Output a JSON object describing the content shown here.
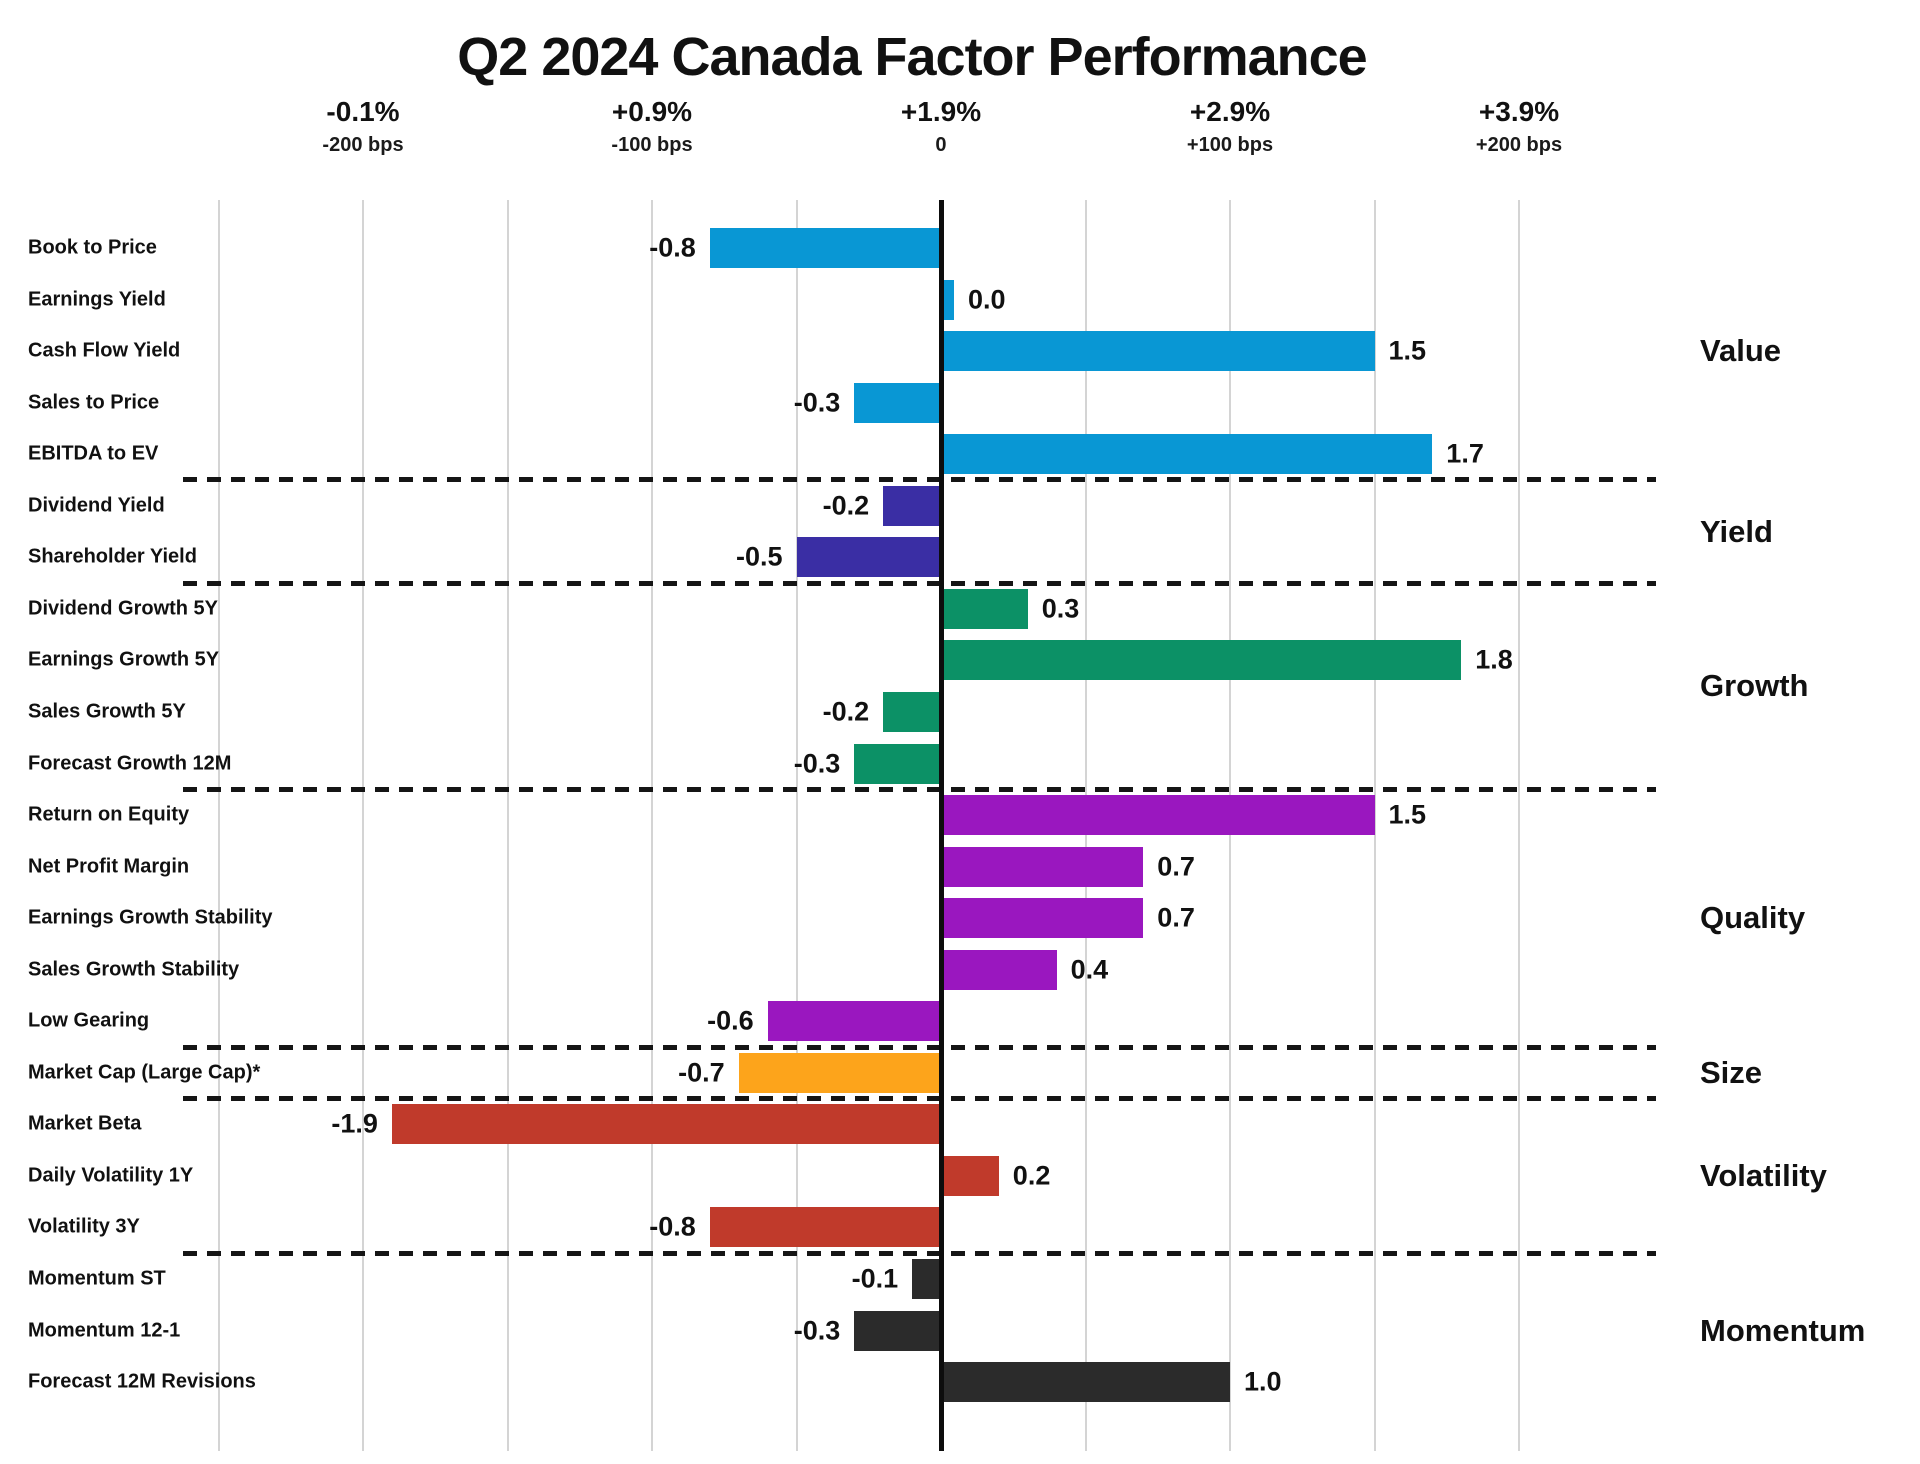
{
  "title": "Q2 2024 Canada Factor Performance",
  "colors": {
    "value_blue": "#0997D4",
    "yield_indigo": "#3A2EA4",
    "growth_green": "#0C9166",
    "quality_purple": "#9A17BF",
    "size_orange": "#FDA41B",
    "volatility_red": "#C03A2B",
    "momentum_dark": "#2B2B2B",
    "gridline": "#D4D4D4",
    "zero_line": "#0D0D0D",
    "text": "#111111"
  },
  "chart_data": {
    "type": "bar",
    "orientation": "horizontal",
    "title": "Q2 2024 Canada Factor Performance",
    "xlabel": "",
    "ylabel": "",
    "unit": "percentage points (100 bps = 1.0)",
    "xlim_bps": [
      -250,
      200
    ],
    "grid": "minor gridlines every 50 bps, thick black line at 0 bps",
    "legend_position": "group labels at right",
    "axis_ticks": [
      {
        "pct": "-0.1%",
        "bps_label": "-200 bps",
        "bps": -200
      },
      {
        "pct": "+0.9%",
        "bps_label": "-100 bps",
        "bps": -100
      },
      {
        "pct": "+1.9%",
        "bps_label": "0",
        "bps": 0
      },
      {
        "pct": "+2.9%",
        "bps_label": "+100 bps",
        "bps": 100
      },
      {
        "pct": "+3.9%",
        "bps_label": "+200 bps",
        "bps": 200
      }
    ],
    "groups": [
      {
        "name": "Value",
        "color_key": "value_blue",
        "items": [
          {
            "label": "Book to Price",
            "value": -0.8,
            "value_label": "-0.8"
          },
          {
            "label": "Earnings Yield",
            "value": 0.0,
            "value_label": "0.0"
          },
          {
            "label": "Cash Flow Yield",
            "value": 1.5,
            "value_label": "1.5"
          },
          {
            "label": "Sales to Price",
            "value": -0.3,
            "value_label": "-0.3"
          },
          {
            "label": "EBITDA to EV",
            "value": 1.7,
            "value_label": "1.7"
          }
        ]
      },
      {
        "name": "Yield",
        "color_key": "yield_indigo",
        "items": [
          {
            "label": "Dividend Yield",
            "value": -0.2,
            "value_label": "-0.2"
          },
          {
            "label": "Shareholder Yield",
            "value": -0.5,
            "value_label": "-0.5"
          }
        ]
      },
      {
        "name": "Growth",
        "color_key": "growth_green",
        "items": [
          {
            "label": "Dividend Growth 5Y",
            "value": 0.3,
            "value_label": "0.3"
          },
          {
            "label": "Earnings Growth 5Y",
            "value": 1.8,
            "value_label": "1.8"
          },
          {
            "label": "Sales Growth 5Y",
            "value": -0.2,
            "value_label": "-0.2"
          },
          {
            "label": "Forecast Growth 12M",
            "value": -0.3,
            "value_label": "-0.3"
          }
        ]
      },
      {
        "name": "Quality",
        "color_key": "quality_purple",
        "items": [
          {
            "label": "Return on Equity",
            "value": 1.5,
            "value_label": "1.5"
          },
          {
            "label": "Net Profit Margin",
            "value": 0.7,
            "value_label": "0.7"
          },
          {
            "label": "Earnings Growth Stability",
            "value": 0.7,
            "value_label": "0.7"
          },
          {
            "label": "Sales Growth Stability",
            "value": 0.4,
            "value_label": "0.4"
          },
          {
            "label": "Low Gearing",
            "value": -0.6,
            "value_label": "-0.6"
          }
        ]
      },
      {
        "name": "Size",
        "color_key": "size_orange",
        "items": [
          {
            "label": "Market Cap (Large Cap)*",
            "value": -0.7,
            "value_label": "-0.7"
          }
        ]
      },
      {
        "name": "Volatility",
        "color_key": "volatility_red",
        "items": [
          {
            "label": "Market Beta",
            "value": -1.9,
            "value_label": "-1.9"
          },
          {
            "label": "Daily Volatility 1Y",
            "value": 0.2,
            "value_label": "0.2"
          },
          {
            "label": "Volatility 3Y",
            "value": -0.8,
            "value_label": "-0.8"
          }
        ]
      },
      {
        "name": "Momentum",
        "color_key": "momentum_dark",
        "items": [
          {
            "label": "Momentum ST",
            "value": -0.1,
            "value_label": "-0.1"
          },
          {
            "label": "Momentum 12-1",
            "value": -0.3,
            "value_label": "-0.3"
          },
          {
            "label": "Forecast 12M Revisions",
            "value": 1.0,
            "value_label": "1.0"
          }
        ]
      }
    ]
  }
}
